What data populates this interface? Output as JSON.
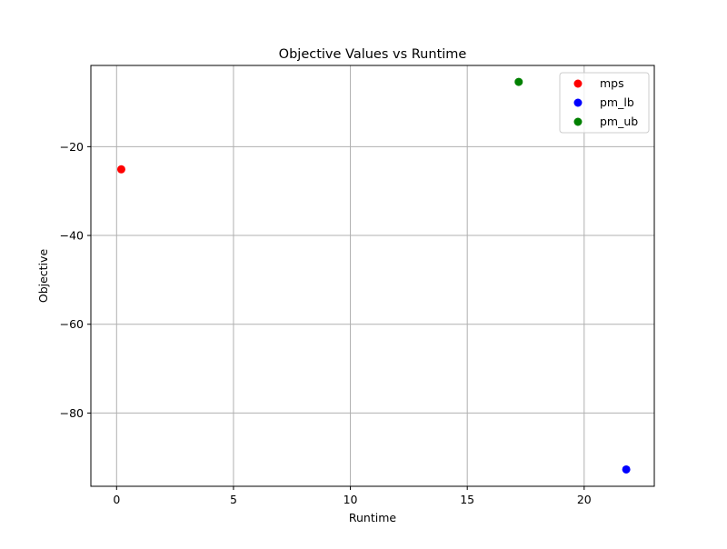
{
  "chart_data": {
    "type": "scatter",
    "title": "Objective Values vs Runtime",
    "xlabel": "Runtime",
    "ylabel": "Objective",
    "xlim": [
      -1.1,
      23.0
    ],
    "ylim": [
      -96.5,
      -1.7
    ],
    "x_ticks": [
      0,
      5,
      10,
      15,
      20
    ],
    "y_ticks": [
      -20,
      -40,
      -60,
      -80
    ],
    "x_tick_labels": [
      "0",
      "5",
      "10",
      "15",
      "20"
    ],
    "y_tick_labels": [
      "−20",
      "−40",
      "−60",
      "−80"
    ],
    "grid": true,
    "legend_position": "top-right",
    "series": [
      {
        "name": "mps",
        "color": "#ff0000",
        "points": [
          {
            "x": 0.2,
            "y": -25.1
          }
        ]
      },
      {
        "name": "pm_lb",
        "color": "#0000ff",
        "points": [
          {
            "x": 21.8,
            "y": -92.7
          }
        ]
      },
      {
        "name": "pm_ub",
        "color": "#008000",
        "points": [
          {
            "x": 17.2,
            "y": -5.4
          }
        ]
      }
    ]
  }
}
